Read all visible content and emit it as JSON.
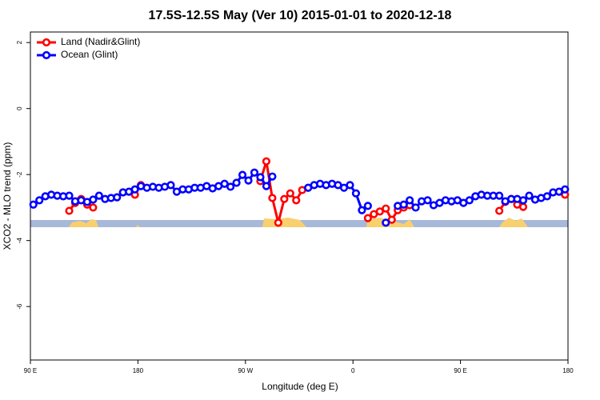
{
  "chart_data": {
    "type": "line",
    "title": "17.5S-12.5S May (Ver 10)   2015-01-01 to 2020-12-18",
    "x_label": "Longitude (deg E)",
    "y_label": "XCO2 - MLO trend (ppm)",
    "legend_position": "top-left",
    "xlim": [
      90,
      540
    ],
    "ylim": [
      -7.62,
      2.32
    ],
    "xticks": [
      {
        "value": 90,
        "label": "90 E"
      },
      180,
      {
        "value": 270,
        "label": "90 W"
      },
      {
        "value": 360,
        "label": "0"
      },
      {
        "value": 450,
        "label": "90 E"
      },
      {
        "value": 540,
        "label": "180"
      }
    ],
    "yticks": [
      2,
      0,
      -2,
      -4,
      -6
    ],
    "x": [
      92.5,
      97.5,
      102.5,
      107.5,
      112.5,
      117.5,
      122.5,
      127.5,
      132.5,
      137.5,
      142.5,
      147.5,
      152.5,
      157.5,
      162.5,
      167.5,
      172.5,
      177.5,
      182.5,
      187.5,
      192.5,
      197.5,
      202.5,
      207.5,
      212.5,
      217.5,
      222.5,
      227.5,
      232.5,
      237.5,
      242.5,
      247.5,
      252.5,
      257.5,
      262.5,
      267.5,
      272.5,
      277.5,
      282.5,
      287.5,
      292.5,
      297.5,
      302.5,
      307.5,
      312.5,
      317.5,
      322.5,
      327.5,
      332.5,
      337.5,
      342.5,
      347.5,
      352.5,
      357.5,
      362.5,
      367.5,
      372.5,
      377.5,
      382.5,
      387.5,
      392.5,
      397.5,
      402.5,
      407.5,
      412.5,
      417.5,
      422.5,
      427.5,
      432.5,
      437.5,
      442.5,
      447.5,
      452.5,
      457.5,
      462.5,
      467.5,
      472.5,
      477.5,
      482.5,
      487.5,
      492.5,
      497.5,
      502.5,
      507.5,
      512.5,
      517.5,
      522.5,
      527.5,
      532.5,
      537.5
    ],
    "series": [
      {
        "name": "Land (Nadir&Glint)",
        "color": "#ff0000",
        "values": [
          null,
          null,
          null,
          null,
          null,
          null,
          -3.1,
          -2.86,
          -2.74,
          -2.91,
          -3.0,
          null,
          null,
          null,
          null,
          -2.54,
          null,
          -2.61,
          -2.32,
          null,
          null,
          null,
          null,
          null,
          null,
          null,
          null,
          null,
          null,
          null,
          null,
          null,
          null,
          null,
          null,
          null,
          null,
          null,
          -2.2,
          -1.6,
          -2.71,
          -3.46,
          -2.74,
          -2.57,
          -2.78,
          -2.47,
          -2.4,
          null,
          null,
          null,
          null,
          null,
          null,
          null,
          null,
          null,
          -3.32,
          -3.2,
          -3.12,
          -3.03,
          -3.37,
          -3.08,
          -3.0,
          -2.93,
          null,
          null,
          null,
          null,
          null,
          null,
          null,
          null,
          null,
          null,
          null,
          null,
          null,
          null,
          -3.1,
          -2.83,
          -2.74,
          -2.91,
          -2.98,
          null,
          null,
          null,
          null,
          null,
          null,
          -2.61
        ]
      },
      {
        "name": "Ocean (Glint)",
        "color": "#0000ff",
        "values": [
          -2.91,
          -2.78,
          -2.66,
          -2.61,
          -2.64,
          -2.66,
          -2.64,
          -2.81,
          -2.78,
          -2.83,
          -2.76,
          -2.64,
          -2.74,
          -2.71,
          -2.69,
          -2.54,
          -2.52,
          -2.45,
          -2.35,
          -2.4,
          -2.37,
          -2.4,
          -2.37,
          -2.32,
          -2.52,
          -2.45,
          -2.45,
          -2.4,
          -2.4,
          -2.35,
          -2.42,
          -2.35,
          -2.28,
          -2.37,
          -2.25,
          -2.01,
          -2.18,
          -1.94,
          -2.08,
          -2.35,
          -2.06,
          null,
          null,
          null,
          null,
          null,
          -2.4,
          -2.32,
          -2.28,
          -2.32,
          -2.28,
          -2.32,
          -2.4,
          -2.32,
          -2.57,
          -3.08,
          -2.95,
          null,
          null,
          -3.46,
          null,
          -2.95,
          -2.91,
          -2.78,
          -3.0,
          -2.81,
          -2.78,
          -2.93,
          -2.86,
          -2.78,
          -2.81,
          -2.78,
          -2.86,
          -2.78,
          -2.66,
          -2.61,
          -2.64,
          -2.64,
          -2.64,
          -2.81,
          -2.74,
          -2.74,
          -2.78,
          -2.64,
          -2.76,
          -2.71,
          -2.66,
          -2.54,
          -2.52,
          -2.45
        ]
      }
    ]
  }
}
